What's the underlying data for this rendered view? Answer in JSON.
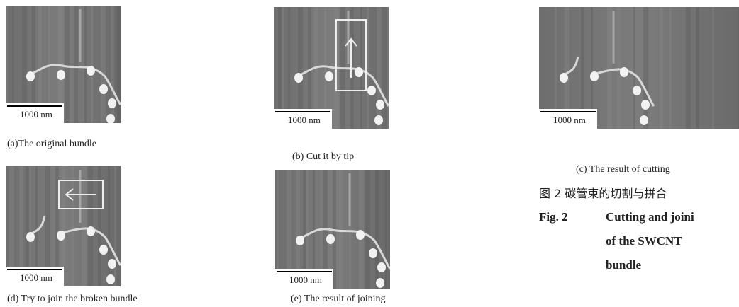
{
  "panels": [
    {
      "caption": "(a)The original bundle",
      "scale_label": "1000 nm"
    },
    {
      "caption": "(b) Cut it by tip",
      "scale_label": "1000 nm"
    },
    {
      "caption": "(c) The result of cutting",
      "scale_label": "1000 nm"
    },
    {
      "caption": "(d) Try to join the broken bundle",
      "scale_label": "1000 nm"
    },
    {
      "caption": "(e) The result of joining",
      "scale_label": "1000 nm"
    }
  ],
  "figure_caption": {
    "zh": "图 2 碳管束的切割与拼合",
    "en_label": "Fig. 2",
    "en_lines": [
      "Cutting and joini",
      "of the SWCNT",
      "bundle"
    ]
  }
}
